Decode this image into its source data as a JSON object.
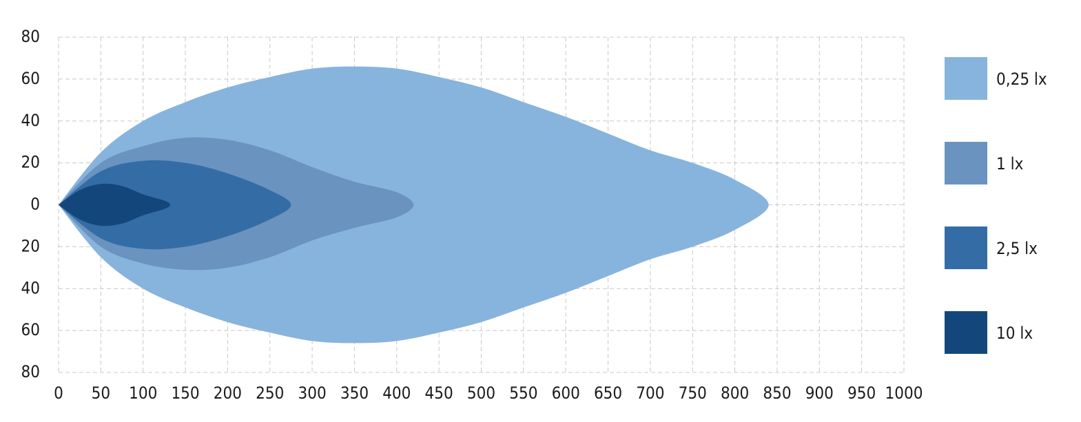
{
  "chart_data": {
    "type": "range-area",
    "xlim": [
      0,
      1000
    ],
    "xticks": [
      0,
      50,
      100,
      150,
      200,
      250,
      300,
      350,
      400,
      450,
      500,
      550,
      600,
      650,
      700,
      750,
      800,
      850,
      900,
      950,
      1000
    ],
    "ylim": [
      -80,
      80
    ],
    "yticks": [
      {
        "value": -80,
        "label": "80"
      },
      {
        "value": -60,
        "label": "60"
      },
      {
        "value": -40,
        "label": "40"
      },
      {
        "value": -20,
        "label": "20"
      },
      0,
      20,
      40,
      60,
      80
    ],
    "grid": true,
    "legend": "right",
    "series": [
      {
        "name": "0,25 lx",
        "color": "#87b4dd",
        "x": [
          0,
          50,
          100,
          150,
          200,
          250,
          300,
          350,
          400,
          450,
          500,
          550,
          600,
          650,
          700,
          750,
          800,
          840
        ],
        "upper": [
          0,
          25,
          40,
          49,
          56,
          61,
          65,
          66,
          65,
          61,
          56,
          49,
          42,
          34,
          26,
          20,
          12,
          0
        ],
        "lower": [
          0,
          -25,
          -40,
          -49,
          -56,
          -61,
          -65,
          -66,
          -65,
          -61,
          -56,
          -49,
          -42,
          -34,
          -26,
          -20,
          -12,
          0
        ]
      },
      {
        "name": "1 lx",
        "color": "#6a93c0",
        "x": [
          0,
          50,
          100,
          150,
          200,
          250,
          300,
          350,
          400,
          420
        ],
        "upper": [
          0,
          20,
          28,
          32,
          31,
          26,
          18,
          11,
          6,
          0
        ],
        "lower": [
          0,
          -20,
          -28,
          -31,
          -30,
          -25,
          -17,
          -11,
          -6,
          0
        ]
      },
      {
        "name": "2,5 lx",
        "color": "#346da6",
        "x": [
          0,
          50,
          100,
          150,
          200,
          250,
          275
        ],
        "upper": [
          0,
          16,
          21,
          20,
          15,
          7,
          0
        ],
        "lower": [
          0,
          -16,
          -21,
          -20,
          -15,
          -7,
          0
        ]
      },
      {
        "name": "10 lx",
        "color": "#13477c",
        "x": [
          0,
          25,
          50,
          75,
          100,
          125,
          132
        ],
        "upper": [
          0,
          7,
          10,
          9,
          5,
          2,
          0
        ],
        "lower": [
          0,
          -7,
          -10,
          -9,
          -5,
          -2,
          0
        ]
      }
    ]
  }
}
